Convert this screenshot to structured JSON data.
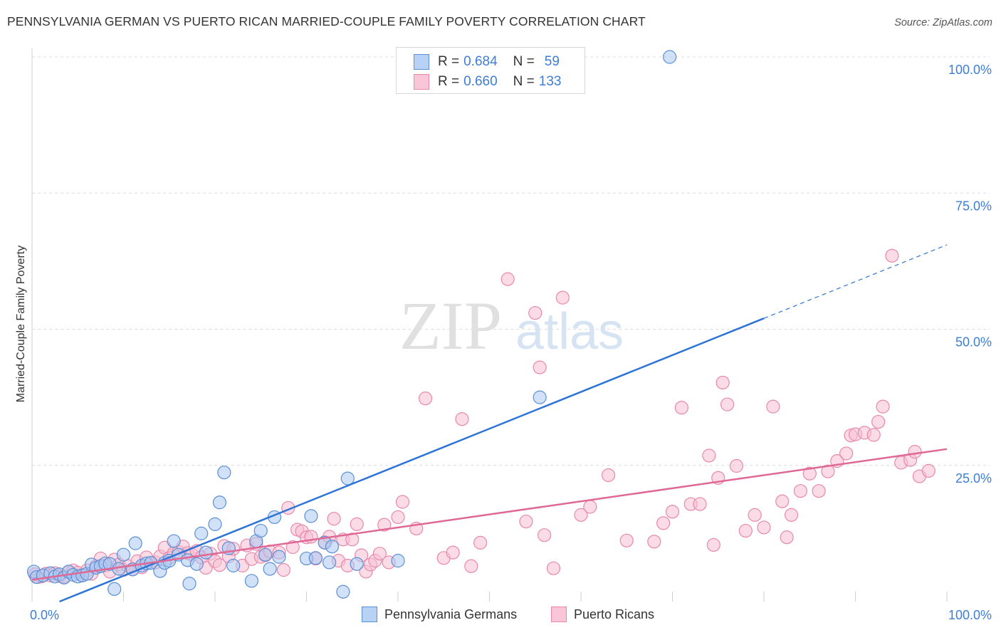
{
  "title": "PENNSYLVANIA GERMAN VS PUERTO RICAN MARRIED-COUPLE FAMILY POVERTY CORRELATION CHART",
  "source": "Source: ZipAtlas.com",
  "watermark": {
    "zip": "ZIP",
    "atlas": "atlas"
  },
  "legend": [
    {
      "r_label": "R =",
      "r_value": "0.684",
      "n_label": "N =",
      "n_value": "59"
    },
    {
      "r_label": "R =",
      "r_value": "0.660",
      "n_label": "N =",
      "n_value": "133"
    }
  ],
  "colors": {
    "blue_fill": "#a9c9f3",
    "blue_stroke": "#5b8fd6",
    "blue_line": "#2d74d6",
    "pink_fill": "#f7bfd2",
    "pink_stroke": "#e888aa",
    "pink_line": "#e06894",
    "grid": "#dcdcdc",
    "tick_label": "#3d7dd8",
    "watermark": "#dddddd"
  },
  "chart_data": {
    "type": "scatter",
    "xlabel": "",
    "ylabel": "Married-Couple Family Poverty",
    "xlim": [
      0,
      100
    ],
    "ylim": [
      0,
      100
    ],
    "x_tick_labels": [
      "0.0%",
      "100.0%"
    ],
    "y_ticks": [
      25,
      50,
      75,
      100
    ],
    "y_tick_labels": [
      "25.0%",
      "50.0%",
      "75.0%",
      "100.0%"
    ],
    "grid": true,
    "series": [
      {
        "name": "Pennsylvania Germans",
        "r": 0.684,
        "n": 59,
        "trend": {
          "x": [
            3,
            80
          ],
          "y": [
            0,
            52
          ],
          "dashed_to": {
            "x": 100,
            "y": 65.5
          }
        },
        "points": [
          [
            0.2,
            5.5
          ],
          [
            0.5,
            4.5
          ],
          [
            1.2,
            4.8
          ],
          [
            2,
            5.2
          ],
          [
            2.5,
            4.6
          ],
          [
            3,
            5
          ],
          [
            3.5,
            4.4
          ],
          [
            4,
            5.5
          ],
          [
            4.5,
            4.9
          ],
          [
            5,
            4.6
          ],
          [
            5.5,
            4.8
          ],
          [
            6,
            5.1
          ],
          [
            6.5,
            6.8
          ],
          [
            7,
            6.2
          ],
          [
            7.5,
            6.5
          ],
          [
            8,
            7
          ],
          [
            8.5,
            6.9
          ],
          [
            9,
            2.3
          ],
          [
            9.5,
            6
          ],
          [
            10,
            8.6
          ],
          [
            11,
            5.9
          ],
          [
            11.3,
            10.7
          ],
          [
            12,
            6.6
          ],
          [
            12.5,
            7
          ],
          [
            13,
            7.1
          ],
          [
            14,
            5.6
          ],
          [
            14.5,
            7.1
          ],
          [
            15,
            7.5
          ],
          [
            15.5,
            11.1
          ],
          [
            16,
            8.6
          ],
          [
            17,
            7.6
          ],
          [
            17.2,
            3.3
          ],
          [
            18,
            6.9
          ],
          [
            18.5,
            12.5
          ],
          [
            19,
            9
          ],
          [
            20,
            14.2
          ],
          [
            20.5,
            18.2
          ],
          [
            21,
            23.7
          ],
          [
            21.5,
            9.8
          ],
          [
            22,
            6.6
          ],
          [
            24,
            3.8
          ],
          [
            24.5,
            11.1
          ],
          [
            25,
            13
          ],
          [
            25.5,
            8.6
          ],
          [
            26,
            6
          ],
          [
            26.5,
            15.5
          ],
          [
            27,
            8.2
          ],
          [
            30,
            7.9
          ],
          [
            30.5,
            15.7
          ],
          [
            31,
            8
          ],
          [
            32,
            10.8
          ],
          [
            32.5,
            7.2
          ],
          [
            32.8,
            10.1
          ],
          [
            34,
            1.8
          ],
          [
            34.5,
            22.6
          ],
          [
            35.5,
            6.9
          ],
          [
            40,
            7.5
          ],
          [
            55.5,
            37.5
          ],
          [
            69.7,
            100
          ]
        ]
      },
      {
        "name": "Puerto Ricans",
        "r": 0.66,
        "n": 133,
        "trend": {
          "x": [
            0,
            100
          ],
          "y": [
            4,
            28
          ]
        },
        "points": [
          [
            0.3,
            5
          ],
          [
            0.6,
            4.5
          ],
          [
            1,
            4.6
          ],
          [
            1.5,
            5.1
          ],
          [
            2,
            4.8
          ],
          [
            2.5,
            5.2
          ],
          [
            3,
            4.7
          ],
          [
            3.5,
            4.6
          ],
          [
            4,
            5.4
          ],
          [
            4.5,
            5.7
          ],
          [
            5,
            5.3
          ],
          [
            5.5,
            4.8
          ],
          [
            6,
            5.7
          ],
          [
            6.5,
            5.1
          ],
          [
            7,
            6.5
          ],
          [
            7.5,
            7.9
          ],
          [
            8,
            6.6
          ],
          [
            8.5,
            5.5
          ],
          [
            9,
            7.7
          ],
          [
            9.5,
            6.8
          ],
          [
            10,
            5.8
          ],
          [
            10.5,
            6.5
          ],
          [
            11,
            5.9
          ],
          [
            11.5,
            7.4
          ],
          [
            12,
            6.3
          ],
          [
            12.5,
            8.1
          ],
          [
            13,
            7.1
          ],
          [
            13.5,
            7.2
          ],
          [
            14,
            8.3
          ],
          [
            14.5,
            9.9
          ],
          [
            15,
            8
          ],
          [
            15.5,
            8.9
          ],
          [
            16,
            9.1
          ],
          [
            16.5,
            10.1
          ],
          [
            17,
            8.9
          ],
          [
            17.5,
            8.6
          ],
          [
            18,
            9.3
          ],
          [
            18.5,
            8.1
          ],
          [
            19,
            6.2
          ],
          [
            19.5,
            8.8
          ],
          [
            20,
            7.4
          ],
          [
            20.5,
            6.7
          ],
          [
            21,
            10.2
          ],
          [
            21.5,
            8.3
          ],
          [
            22,
            9.7
          ],
          [
            23,
            6.6
          ],
          [
            23.5,
            10.3
          ],
          [
            24,
            7.8
          ],
          [
            24.5,
            10.6
          ],
          [
            25,
            8.2
          ],
          [
            25.5,
            8.5
          ],
          [
            26,
            9.2
          ],
          [
            27,
            9
          ],
          [
            27.5,
            5.8
          ],
          [
            28,
            17.2
          ],
          [
            28.5,
            10
          ],
          [
            29,
            13.2
          ],
          [
            29.5,
            12.9
          ],
          [
            30,
            11.8
          ],
          [
            30.5,
            11.9
          ],
          [
            31,
            7.9
          ],
          [
            32,
            10.9
          ],
          [
            32.5,
            11.9
          ],
          [
            33,
            15.2
          ],
          [
            33.5,
            7.5
          ],
          [
            34,
            11.4
          ],
          [
            34.5,
            6.6
          ],
          [
            35,
            11.4
          ],
          [
            35.5,
            14.2
          ],
          [
            36,
            8.5
          ],
          [
            36.5,
            5.5
          ],
          [
            37,
            6.8
          ],
          [
            37.5,
            7.5
          ],
          [
            38,
            8.8
          ],
          [
            38.5,
            14.1
          ],
          [
            39,
            7.2
          ],
          [
            40,
            15.5
          ],
          [
            40.5,
            18.3
          ],
          [
            42,
            13.4
          ],
          [
            43,
            37.3
          ],
          [
            45,
            8
          ],
          [
            46,
            9
          ],
          [
            47,
            33.5
          ],
          [
            48,
            6.5
          ],
          [
            49,
            10.8
          ],
          [
            52,
            59.2
          ],
          [
            54,
            14.7
          ],
          [
            55,
            53
          ],
          [
            55.5,
            43
          ],
          [
            56,
            12.2
          ],
          [
            57,
            6.1
          ],
          [
            58,
            55.8
          ],
          [
            60,
            15.9
          ],
          [
            61,
            17.4
          ],
          [
            63,
            23.2
          ],
          [
            65,
            11.2
          ],
          [
            68,
            11
          ],
          [
            69,
            14.4
          ],
          [
            70,
            16.5
          ],
          [
            71,
            35.6
          ],
          [
            72,
            17.9
          ],
          [
            73,
            17.9
          ],
          [
            74,
            26.8
          ],
          [
            74.5,
            10.4
          ],
          [
            75,
            22.7
          ],
          [
            75.5,
            40.2
          ],
          [
            76,
            36.2
          ],
          [
            77,
            24.9
          ],
          [
            78,
            13
          ],
          [
            79,
            15.9
          ],
          [
            80,
            13.6
          ],
          [
            81,
            35.8
          ],
          [
            82,
            18.4
          ],
          [
            82.5,
            11.8
          ],
          [
            83,
            15.9
          ],
          [
            84,
            20.3
          ],
          [
            85,
            23.5
          ],
          [
            86,
            20.3
          ],
          [
            87,
            23.9
          ],
          [
            88,
            25.8
          ],
          [
            89,
            27.2
          ],
          [
            89.5,
            30.5
          ],
          [
            90,
            30.7
          ],
          [
            91,
            31
          ],
          [
            92,
            30.6
          ],
          [
            92.5,
            33
          ],
          [
            93,
            35.8
          ],
          [
            94,
            63.5
          ],
          [
            95,
            25.5
          ],
          [
            96,
            26
          ],
          [
            96.5,
            27.5
          ],
          [
            97,
            23
          ],
          [
            98,
            24
          ]
        ]
      }
    ]
  },
  "bottom_legend": [
    "Pennsylvania Germans",
    "Puerto Ricans"
  ]
}
